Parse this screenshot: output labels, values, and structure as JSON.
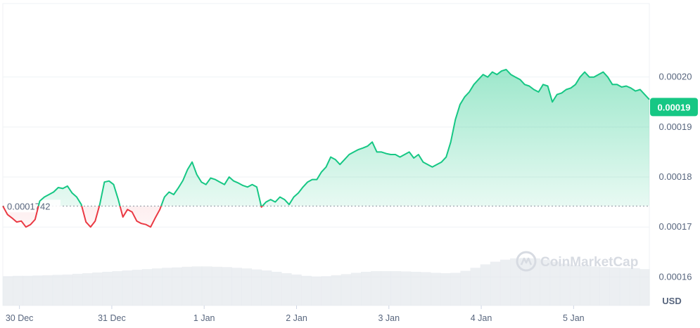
{
  "chart_data": {
    "type": "area",
    "baseline": {
      "value": 0.0001742,
      "label": "0.0001742"
    },
    "current_price": {
      "value": 0.000194,
      "label": "0.00019"
    },
    "x_ticks": [
      "30 Dec",
      "31 Dec",
      "1 Jan",
      "2 Jan",
      "3 Jan",
      "4 Jan",
      "5 Jan"
    ],
    "y_ticks": [
      {
        "value": 0.00016,
        "label": "0.00016"
      },
      {
        "value": 0.00017,
        "label": "0.00017"
      },
      {
        "value": 0.00018,
        "label": "0.00018"
      },
      {
        "value": 0.00019,
        "label": "0.00019"
      },
      {
        "value": 0.0002,
        "label": "0.00020"
      }
    ],
    "ylim": [
      0.0001543,
      0.0002147
    ],
    "xlim": [
      0,
      7.0
    ],
    "currency": "USD",
    "watermark": "CoinMarketCap",
    "colors": {
      "up": "#16c784",
      "down": "#ea3943",
      "grid": "#eff2f5",
      "axis_text": "#58667e",
      "badge": "#16c784"
    },
    "series": [
      {
        "x": [
          0.0,
          0.05,
          0.1,
          0.15,
          0.2,
          0.25,
          0.3,
          0.35,
          0.4,
          0.45,
          0.5,
          0.55,
          0.6,
          0.65,
          0.7,
          0.75,
          0.8,
          0.85,
          0.9,
          0.95,
          1.0,
          1.05,
          1.1,
          1.15,
          1.2,
          1.25,
          1.3,
          1.35,
          1.4,
          1.45,
          1.5,
          1.55,
          1.6,
          1.65,
          1.7,
          1.75,
          1.8,
          1.85,
          1.9,
          1.95,
          2.0,
          2.05,
          2.1,
          2.15,
          2.2,
          2.25,
          2.3,
          2.35,
          2.4,
          2.45,
          2.5,
          2.55,
          2.6,
          2.65,
          2.7,
          2.75,
          2.8,
          2.85,
          2.9,
          2.95,
          3.0,
          3.05,
          3.1,
          3.15,
          3.2,
          3.25,
          3.3,
          3.35,
          3.4,
          3.45,
          3.5,
          3.55,
          3.6,
          3.65,
          3.7,
          3.75,
          3.8,
          3.85,
          3.9,
          3.95,
          4.0,
          4.05,
          4.1,
          4.15,
          4.2,
          4.25,
          4.3,
          4.35,
          4.4,
          4.45,
          4.5,
          4.55,
          4.6,
          4.65,
          4.7,
          4.75,
          4.8,
          4.85,
          4.9,
          4.95,
          5.0,
          5.05,
          5.1,
          5.15,
          5.2,
          5.25,
          5.3,
          5.35,
          5.4,
          5.45,
          5.5,
          5.55,
          5.6,
          5.65,
          5.7,
          5.75,
          5.8,
          5.85,
          5.9,
          5.95,
          6.0,
          6.05,
          6.1,
          6.15,
          6.2,
          6.25,
          6.3,
          6.35,
          6.4,
          6.45,
          6.5,
          6.55,
          6.6,
          6.65,
          6.7,
          6.75,
          6.8,
          6.85,
          6.9,
          6.95,
          7.0
        ],
        "y": [
          0.0001742,
          0.0001725,
          0.0001718,
          0.000171,
          0.0001712,
          0.00017,
          0.0001705,
          0.0001715,
          0.0001752,
          0.000176,
          0.0001765,
          0.000177,
          0.0001779,
          0.0001777,
          0.0001782,
          0.0001768,
          0.000176,
          0.0001745,
          0.000171,
          0.00017,
          0.0001712,
          0.0001745,
          0.000179,
          0.0001792,
          0.0001785,
          0.0001755,
          0.000172,
          0.0001735,
          0.000173,
          0.0001712,
          0.0001707,
          0.0001705,
          0.00017,
          0.0001718,
          0.0001735,
          0.000176,
          0.000177,
          0.0001765,
          0.0001778,
          0.0001793,
          0.0001815,
          0.000183,
          0.0001805,
          0.000179,
          0.0001785,
          0.0001798,
          0.0001795,
          0.000179,
          0.0001785,
          0.00018,
          0.0001792,
          0.0001788,
          0.0001783,
          0.000178,
          0.0001785,
          0.000178,
          0.000174,
          0.000175,
          0.0001755,
          0.000175,
          0.000176,
          0.0001755,
          0.0001745,
          0.000176,
          0.0001768,
          0.000178,
          0.000179,
          0.0001795,
          0.0001795,
          0.000181,
          0.000182,
          0.000184,
          0.0001835,
          0.0001825,
          0.0001835,
          0.0001845,
          0.000185,
          0.0001855,
          0.0001858,
          0.0001862,
          0.000187,
          0.000185,
          0.000185,
          0.0001847,
          0.0001845,
          0.0001845,
          0.000184,
          0.0001845,
          0.000185,
          0.0001838,
          0.0001845,
          0.000183,
          0.0001825,
          0.000182,
          0.0001825,
          0.000183,
          0.000184,
          0.000187,
          0.0001915,
          0.0001945,
          0.000196,
          0.000197,
          0.0001985,
          0.0001995,
          0.0002005,
          0.0002,
          0.000201,
          0.0002005,
          0.0002012,
          0.0002015,
          0.0002005,
          0.0002,
          0.0001995,
          0.0001985,
          0.0001982,
          0.0001975,
          0.000197,
          0.0001985,
          0.0001982,
          0.000195,
          0.0001965,
          0.0001968,
          0.0001975,
          0.0001978,
          0.0001985,
          0.0002,
          0.000201,
          0.0002,
          0.0002,
          0.0002005,
          0.000201,
          0.0002,
          0.0001985,
          0.0001985,
          0.000198,
          0.0001982,
          0.0001978,
          0.0001972,
          0.0001975,
          0.0001965,
          0.0001955
        ]
      }
    ],
    "volume": [
      0.37,
      0.38,
      0.38,
      0.39,
      0.4,
      0.41,
      0.42,
      0.44,
      0.46,
      0.48,
      0.5,
      0.52,
      0.54,
      0.56,
      0.58,
      0.6,
      0.62,
      0.63,
      0.65,
      0.66,
      0.66,
      0.65,
      0.64,
      0.62,
      0.6,
      0.57,
      0.54,
      0.5,
      0.46,
      0.42,
      0.38,
      0.36,
      0.37,
      0.4,
      0.43,
      0.47,
      0.5,
      0.52,
      0.52,
      0.52,
      0.51,
      0.5,
      0.49,
      0.47,
      0.46,
      0.47,
      0.53,
      0.62,
      0.72,
      0.8,
      0.86,
      0.9,
      0.91,
      0.9,
      0.86,
      0.8,
      0.74,
      0.7,
      0.68,
      0.66,
      0.64,
      0.63,
      0.62,
      0.61,
      0.58
    ]
  }
}
